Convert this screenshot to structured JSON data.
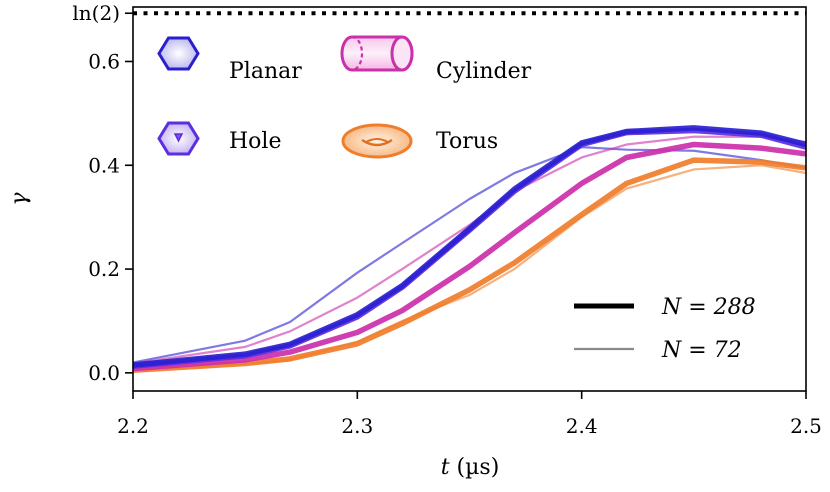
{
  "chart_data": {
    "type": "line",
    "title": "",
    "xlabel": "t (µs)",
    "ylabel": "γ",
    "xlim": [
      2.2,
      2.5
    ],
    "ylim": [
      -0.035,
      0.705
    ],
    "xticks": [
      {
        "value": 2.2,
        "label": "2.2"
      },
      {
        "value": 2.3,
        "label": "2.3"
      },
      {
        "value": 2.4,
        "label": "2.4"
      },
      {
        "value": 2.5,
        "label": "2.5"
      }
    ],
    "yticks": [
      {
        "value": 0.0,
        "label": "0.0"
      },
      {
        "value": 0.2,
        "label": "0.2"
      },
      {
        "value": 0.4,
        "label": "0.4"
      },
      {
        "value": 0.6,
        "label": "0.6"
      },
      {
        "value": 0.693,
        "label": "ln(2)"
      }
    ],
    "reference_line": {
      "name": "ln(2)",
      "value": 0.693,
      "style": "dotted"
    },
    "geometry_legend": [
      {
        "name": "Planar",
        "color": "#2a1fd0",
        "icon": "hexagon-icon"
      },
      {
        "name": "Cylinder",
        "color": "#cc2faa",
        "icon": "cylinder-icon"
      },
      {
        "name": "Hole",
        "color": "#5b2ee0",
        "icon": "hexagon-with-hole-icon"
      },
      {
        "name": "Torus",
        "color": "#f07d2a",
        "icon": "torus-icon"
      }
    ],
    "size_legend": [
      {
        "label": "N = 288",
        "style": "thick"
      },
      {
        "label": "N = 72",
        "style": "thin"
      }
    ],
    "x": [
      2.2,
      2.25,
      2.27,
      2.3,
      2.32,
      2.35,
      2.37,
      2.4,
      2.42,
      2.45,
      2.48,
      2.5
    ],
    "series": [
      {
        "name": "Planar N=72",
        "geometry": "Planar",
        "N": 72,
        "color": "#2a1fd0",
        "width": "thin",
        "values": [
          0.02,
          0.062,
          0.098,
          0.193,
          0.25,
          0.335,
          0.385,
          0.435,
          0.43,
          0.428,
          0.41,
          0.395
        ]
      },
      {
        "name": "Cylinder N=72",
        "geometry": "Cylinder",
        "N": 72,
        "color": "#cc2faa",
        "width": "thin",
        "values": [
          0.018,
          0.05,
          0.08,
          0.145,
          0.2,
          0.285,
          0.35,
          0.415,
          0.44,
          0.455,
          0.455,
          0.445
        ]
      },
      {
        "name": "Torus N=72",
        "geometry": "Torus",
        "N": 72,
        "color": "#f07d2a",
        "width": "thin",
        "values": [
          0.004,
          0.017,
          0.025,
          0.06,
          0.1,
          0.15,
          0.2,
          0.3,
          0.355,
          0.392,
          0.4,
          0.385
        ]
      },
      {
        "name": "Torus N=288",
        "geometry": "Torus",
        "N": 288,
        "color": "#f07d2a",
        "width": "thick",
        "values": [
          0.005,
          0.018,
          0.027,
          0.056,
          0.095,
          0.16,
          0.212,
          0.305,
          0.365,
          0.41,
          0.406,
          0.395
        ]
      },
      {
        "name": "Cylinder N=288",
        "geometry": "Cylinder",
        "N": 288,
        "color": "#cc2faa",
        "width": "thick",
        "values": [
          0.008,
          0.025,
          0.04,
          0.078,
          0.12,
          0.205,
          0.27,
          0.365,
          0.415,
          0.44,
          0.433,
          0.422
        ]
      },
      {
        "name": "Hole N=288",
        "geometry": "Hole",
        "N": 288,
        "color": "#5b2ee0",
        "width": "thick",
        "values": [
          0.013,
          0.033,
          0.052,
          0.108,
          0.165,
          0.275,
          0.35,
          0.44,
          0.463,
          0.467,
          0.458,
          0.435
        ]
      },
      {
        "name": "Planar N=288",
        "geometry": "Planar",
        "N": 288,
        "color": "#2a1fd0",
        "width": "thick",
        "values": [
          0.015,
          0.036,
          0.055,
          0.112,
          0.168,
          0.278,
          0.354,
          0.443,
          0.465,
          0.472,
          0.462,
          0.44
        ]
      }
    ]
  }
}
